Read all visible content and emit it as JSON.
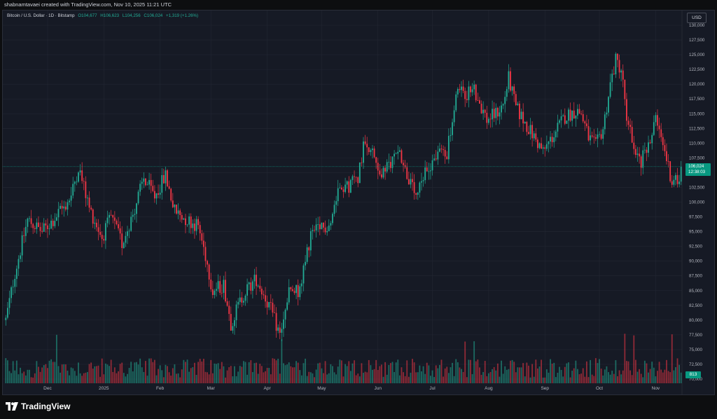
{
  "header": {
    "text": "shabnamtavaei created with TradingView.com, Nov 10, 2025 11:21 UTC"
  },
  "legend": {
    "symbol": "Bitcoin / U.S. Dollar · 1D · Bitstamp",
    "open": "O104,677",
    "high": "H106,623",
    "low": "L104,256",
    "close": "C106,024",
    "change": "+1,319 (+1.26%)"
  },
  "toolbar": {
    "currency": "USD"
  },
  "last_price": {
    "value": "106,024",
    "countdown": "12:38:03"
  },
  "volume_badge": "813",
  "footer": {
    "brand": "TradingView"
  },
  "colors": {
    "up": "#22ab94",
    "down": "#f23645",
    "background": "#161a25",
    "grid": "#232733",
    "text": "#b2b5be"
  },
  "chart_data": {
    "type": "candlestick",
    "title": "Bitcoin / U.S. Dollar · 1D · Bitstamp",
    "ylabel": "USD",
    "ylim": [
      70000,
      130000
    ],
    "y_ticks": [
      130000,
      127500,
      125000,
      122500,
      120000,
      117500,
      115000,
      112500,
      110000,
      107500,
      105000,
      102500,
      100000,
      97500,
      95000,
      92500,
      90000,
      87500,
      85000,
      82500,
      80000,
      77500,
      75000,
      72500,
      70000
    ],
    "y_tick_labels": [
      "130,000",
      "127,500",
      "125,000",
      "122,500",
      "120,000",
      "117,500",
      "115,000",
      "112,500",
      "110,000",
      "107,500",
      "105,000",
      "102,500",
      "100,000",
      "97,500",
      "95,000",
      "92,500",
      "90,000",
      "87,500",
      "85,000",
      "82,500",
      "80,000",
      "77,500",
      "75,000",
      "72,500",
      "70,000"
    ],
    "x_labels": [
      {
        "label": "Dec",
        "day": 23
      },
      {
        "label": "2025",
        "day": 54
      },
      {
        "label": "Feb",
        "day": 85
      },
      {
        "label": "Mar",
        "day": 113
      },
      {
        "label": "Apr",
        "day": 144
      },
      {
        "label": "May",
        "day": 174
      },
      {
        "label": "Jun",
        "day": 205
      },
      {
        "label": "Jul",
        "day": 235
      },
      {
        "label": "Aug",
        "day": 266
      },
      {
        "label": "Sep",
        "day": 297
      },
      {
        "label": "Oct",
        "day": 327
      },
      {
        "label": "Nov",
        "day": 358
      }
    ],
    "grid": true,
    "anchors": [
      {
        "day": 0,
        "price": 80000
      },
      {
        "day": 5,
        "price": 88000
      },
      {
        "day": 12,
        "price": 97000
      },
      {
        "day": 20,
        "price": 95000
      },
      {
        "day": 29,
        "price": 98000
      },
      {
        "day": 36,
        "price": 101000
      },
      {
        "day": 40,
        "price": 106000
      },
      {
        "day": 46,
        "price": 99000
      },
      {
        "day": 53,
        "price": 94000
      },
      {
        "day": 58,
        "price": 97500
      },
      {
        "day": 64,
        "price": 93000
      },
      {
        "day": 70,
        "price": 98000
      },
      {
        "day": 76,
        "price": 104000
      },
      {
        "day": 82,
        "price": 101000
      },
      {
        "day": 88,
        "price": 104500
      },
      {
        "day": 93,
        "price": 98500
      },
      {
        "day": 100,
        "price": 97000
      },
      {
        "day": 106,
        "price": 96000
      },
      {
        "day": 110,
        "price": 91000
      },
      {
        "day": 114,
        "price": 85000
      },
      {
        "day": 120,
        "price": 86000
      },
      {
        "day": 124,
        "price": 79500
      },
      {
        "day": 131,
        "price": 84500
      },
      {
        "day": 138,
        "price": 87000
      },
      {
        "day": 145,
        "price": 82500
      },
      {
        "day": 151,
        "price": 77500
      },
      {
        "day": 156,
        "price": 84500
      },
      {
        "day": 162,
        "price": 85000
      },
      {
        "day": 168,
        "price": 94500
      },
      {
        "day": 174,
        "price": 95500
      },
      {
        "day": 179,
        "price": 96500
      },
      {
        "day": 184,
        "price": 103500
      },
      {
        "day": 188,
        "price": 102500
      },
      {
        "day": 194,
        "price": 104500
      },
      {
        "day": 198,
        "price": 111000
      },
      {
        "day": 203,
        "price": 107500
      },
      {
        "day": 207,
        "price": 104500
      },
      {
        "day": 212,
        "price": 106500
      },
      {
        "day": 216,
        "price": 109500
      },
      {
        "day": 221,
        "price": 104500
      },
      {
        "day": 226,
        "price": 100500
      },
      {
        "day": 232,
        "price": 105500
      },
      {
        "day": 238,
        "price": 108500
      },
      {
        "day": 243,
        "price": 108500
      },
      {
        "day": 246,
        "price": 113500
      },
      {
        "day": 249,
        "price": 119000
      },
      {
        "day": 253,
        "price": 118500
      },
      {
        "day": 258,
        "price": 119000
      },
      {
        "day": 265,
        "price": 114000
      },
      {
        "day": 270,
        "price": 115000
      },
      {
        "day": 274,
        "price": 116500
      },
      {
        "day": 277,
        "price": 121000
      },
      {
        "day": 281,
        "price": 116000
      },
      {
        "day": 286,
        "price": 113500
      },
      {
        "day": 291,
        "price": 111000
      },
      {
        "day": 296,
        "price": 108500
      },
      {
        "day": 302,
        "price": 111500
      },
      {
        "day": 308,
        "price": 114500
      },
      {
        "day": 314,
        "price": 115500
      },
      {
        "day": 317,
        "price": 115000
      },
      {
        "day": 321,
        "price": 111000
      },
      {
        "day": 325,
        "price": 109500
      },
      {
        "day": 329,
        "price": 112500
      },
      {
        "day": 333,
        "price": 120000
      },
      {
        "day": 336,
        "price": 124000
      },
      {
        "day": 339,
        "price": 122500
      },
      {
        "day": 342,
        "price": 115000
      },
      {
        "day": 346,
        "price": 108500
      },
      {
        "day": 350,
        "price": 106500
      },
      {
        "day": 354,
        "price": 110500
      },
      {
        "day": 358,
        "price": 113500
      },
      {
        "day": 361,
        "price": 110500
      },
      {
        "day": 364,
        "price": 107500
      },
      {
        "day": 367,
        "price": 103500
      },
      {
        "day": 370,
        "price": 103500
      },
      {
        "day": 372,
        "price": 106024
      }
    ],
    "volume_spikes": [
      {
        "day": 28
      },
      {
        "day": 152
      },
      {
        "day": 253
      },
      {
        "day": 258
      },
      {
        "day": 341
      },
      {
        "day": 346
      },
      {
        "day": 367
      }
    ]
  }
}
